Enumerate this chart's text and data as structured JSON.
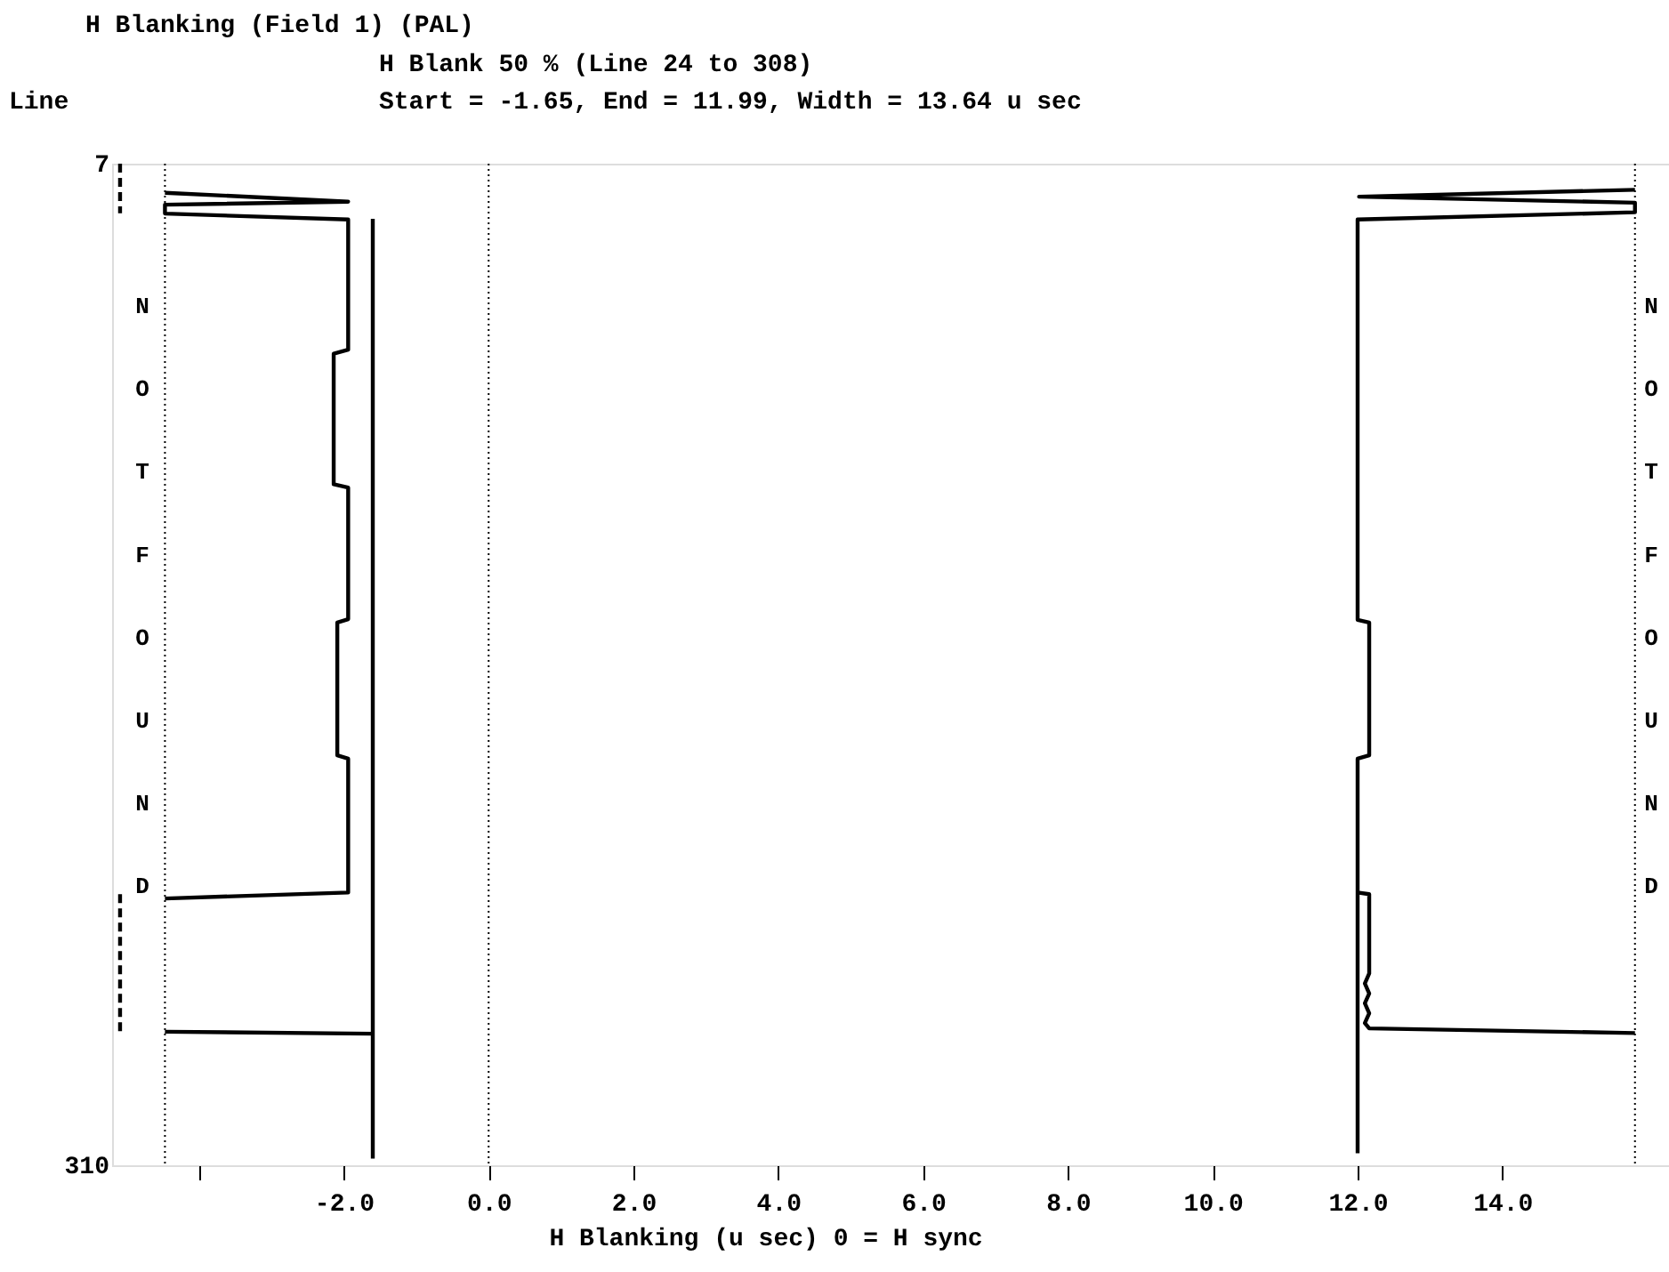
{
  "chart_data": {
    "type": "line",
    "title": "H Blanking (Field 1)  (PAL)",
    "subtitle": "H Blank 50 % (Line  24 to 308)\nStart =  -1.65, End =  11.99, Width =  13.64 u sec",
    "xlabel": "H Blanking (u sec)    0 = H sync",
    "ylabel": "Line",
    "xlim": [
      -5.2,
      16.3
    ],
    "ylim": [
      310,
      7
    ],
    "xticks": [
      {
        "value": -4,
        "label": null
      },
      {
        "value": -2,
        "label": "-2.0"
      },
      {
        "value": 0,
        "label": "0.0"
      },
      {
        "value": 2,
        "label": "2.0"
      },
      {
        "value": 4,
        "label": "4.0"
      },
      {
        "value": 6,
        "label": "6.0"
      },
      {
        "value": 8,
        "label": "8.0"
      },
      {
        "value": 10,
        "label": "10.0"
      },
      {
        "value": 12,
        "label": "12.0"
      },
      {
        "value": 14,
        "label": "14.0"
      }
    ],
    "yticks": [
      7,
      310
    ],
    "grid": false,
    "marker": "none",
    "line_style": "solid",
    "series": [
      {
        "color": "#000000",
        "x": [
          -4.47,
          -1.94,
          -4.47,
          -4.47,
          -1.94,
          -1.94,
          -2.14,
          -2.14,
          -1.94,
          -1.94,
          -2.09,
          -2.09,
          -1.94,
          -1.94,
          -4.47
        ],
        "values": [
          15.8,
          18.5,
          19.4,
          22.1,
          23.9,
          63.3,
          64.5,
          104,
          105,
          144.8,
          145.8,
          186,
          187,
          227.5,
          229.3
        ]
      },
      {
        "color": "#000000",
        "x": [
          -1.6,
          -1.6
        ],
        "values": [
          23.7,
          308
        ]
      },
      {
        "color": "#000000",
        "x": [
          -4.47,
          -1.6
        ],
        "values": [
          269.6,
          270.2
        ]
      },
      {
        "color": "#000000",
        "line_style": "dashed",
        "x": [
          -5.09,
          -5.09
        ],
        "values": [
          7,
          22
        ]
      },
      {
        "color": "#000000",
        "line_style": "dashed",
        "x": [
          -5.09,
          -5.09
        ],
        "values": [
          228,
          269.6
        ]
      },
      {
        "color": "#000000",
        "x": [
          15.83,
          12.02,
          15.83,
          15.83,
          12.0,
          12.0,
          12.16,
          12.16,
          12.0,
          12.0
        ],
        "values": [
          14.9,
          17,
          18.8,
          21.7,
          23.9,
          145,
          145.8,
          186,
          187,
          306.4
        ]
      },
      {
        "color": "#000000",
        "x": [
          12.0,
          12.16,
          12.16,
          12.1,
          12.16,
          12.1,
          12.16,
          12.1,
          12.16,
          15.83
        ],
        "values": [
          227.5,
          228,
          252,
          255,
          258,
          261,
          264,
          267,
          268.6,
          270
        ]
      }
    ],
    "ref_lines": [
      {
        "axis": "x",
        "value": 0,
        "line_style": "dotted",
        "color": "#000000"
      },
      {
        "axis": "x",
        "value": -4.47,
        "line_style": "dotted",
        "color": "#000000"
      },
      {
        "axis": "x",
        "value": 15.83,
        "line_style": "dotted",
        "color": "#000000"
      }
    ],
    "annotations": [
      "NOT FOUND",
      "NOT FOUND"
    ]
  }
}
